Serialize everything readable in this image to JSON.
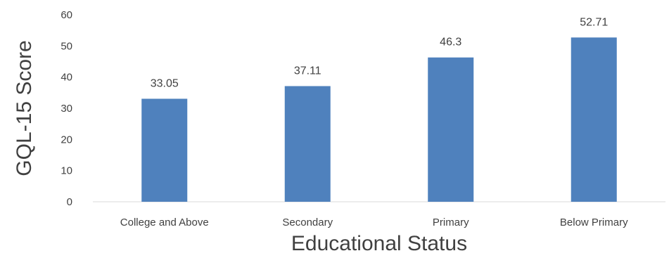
{
  "chart_data": {
    "type": "bar",
    "categories": [
      "College and Above",
      "Secondary",
      "Primary",
      "Below Primary"
    ],
    "values": [
      33.05,
      37.11,
      46.3,
      52.71
    ],
    "data_labels": [
      "33.05",
      "37.11",
      "46.3",
      "52.71"
    ],
    "xlabel": "Educational Status",
    "ylabel": "GQL-15 Score",
    "ylim": [
      0,
      60
    ],
    "yticks": [
      "0",
      "10",
      "20",
      "30",
      "40",
      "50",
      "60"
    ],
    "grid": false,
    "legend": "none",
    "bar_color": "#4f81bd",
    "axis_color": "#d9d9d9",
    "text_color": "#404040"
  }
}
